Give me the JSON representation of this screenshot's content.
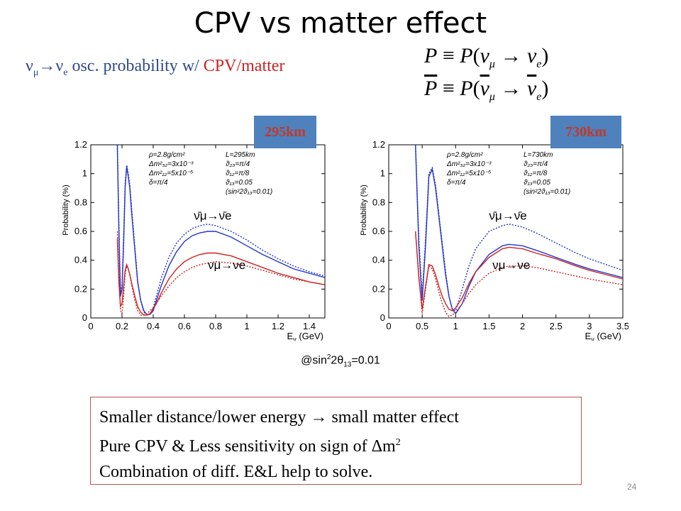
{
  "slide": {
    "title": "CPV vs matter effect",
    "subtitle": {
      "nu_mu": "ν",
      "mu_sub": "μ",
      "arrow": "→",
      "nu_e": "ν",
      "e_sub": "e",
      "text_blue": " osc. probability w/ ",
      "text_red": "CPV/matter"
    },
    "formula_p": {
      "lhs": "P",
      "eq": " ≡ ",
      "p": "P",
      "open": "(",
      "nu1": "ν",
      "sub1": "μ",
      "arrow": " → ",
      "nu2": "ν",
      "sub2": "e",
      "close": ")"
    },
    "formula_pbar": {
      "lhs": "P",
      "eq": " ≡ ",
      "p": "P",
      "open": "(",
      "nu1": "ν",
      "sub1": "μ",
      "arrow": " → ",
      "nu2": "ν",
      "sub2": "e",
      "close": ")"
    },
    "badges": [
      "295km",
      "730km"
    ],
    "note": {
      "prefix": "@sin",
      "sup": "2",
      "mid": "2θ",
      "sub": "13",
      "suffix": "=0.01"
    },
    "box_lines": [
      "Smaller distance/lower energy → small matter effect",
      "Pure CPV & Less sensitivity on sign of Δm",
      "Combination of diff. E&L help to solve."
    ],
    "box_line2_sup": "2",
    "page_number": "24"
  },
  "colors": {
    "title_text": "#000000",
    "subtitle_blue": "#2e4a8c",
    "subtitle_red": "#cc2222",
    "badge_fill": "#4f81bd",
    "badge_text": "#c0392b",
    "box_border": "#c0504d",
    "nu_curve": "#2233cc",
    "nubar_curve": "#cc2222"
  },
  "chart_data": [
    {
      "type": "line",
      "xlabel": "E",
      "xlabel_sub": "ν",
      "xlabel_unit": " (GeV)",
      "ylabel": "Probability (%)",
      "xlim": [
        0,
        1.5
      ],
      "ylim": [
        0,
        1.2
      ],
      "xticks": [
        "0",
        "0.2",
        "0.4",
        "0.6",
        "0.8",
        "1",
        "1.2",
        "1.4"
      ],
      "yticks": [
        "0",
        "0.2",
        "0.4",
        "0.6",
        "0.8",
        "1",
        "1.2"
      ],
      "params_left": [
        "ρ=2.8g/cm²",
        "Δm²₃₂=3x10⁻³",
        "Δm²₁₂=5x10⁻⁵",
        "δ=π/4"
      ],
      "params_right": [
        "L=295km",
        "ϑ₂₃=π/4",
        "ϑ₁₂=π/8",
        "ϑ₁₃=0.05",
        "(sin²2ϑ₁₃=0.01)"
      ],
      "annotations": [
        {
          "label": "ν̄μ→ν̄e",
          "x": 0.66,
          "y": 0.68
        },
        {
          "label": "νμ→νe",
          "x": 0.75,
          "y": 0.34
        }
      ],
      "series": [
        {
          "color": "#2233cc",
          "style": "solid",
          "x": [
            0.17,
            0.18,
            0.19,
            0.2,
            0.21,
            0.22,
            0.23,
            0.24,
            0.25,
            0.26,
            0.28,
            0.3,
            0.32,
            0.34,
            0.36,
            0.38,
            0.4,
            0.42,
            0.45,
            0.5,
            0.55,
            0.6,
            0.65,
            0.7,
            0.75,
            0.8,
            0.9,
            1.0,
            1.1,
            1.2,
            1.3,
            1.4,
            1.5
          ],
          "y": [
            1.2,
            0.6,
            0.15,
            0.2,
            0.5,
            0.9,
            1.05,
            0.98,
            0.9,
            0.75,
            0.5,
            0.25,
            0.12,
            0.05,
            0.02,
            0.025,
            0.05,
            0.12,
            0.22,
            0.36,
            0.46,
            0.53,
            0.57,
            0.59,
            0.6,
            0.6,
            0.56,
            0.5,
            0.44,
            0.39,
            0.34,
            0.31,
            0.28
          ]
        },
        {
          "color": "#2233cc",
          "style": "dashed",
          "x": [
            0.17,
            0.18,
            0.19,
            0.2,
            0.21,
            0.22,
            0.23,
            0.24,
            0.25,
            0.26,
            0.28,
            0.3,
            0.32,
            0.34,
            0.36,
            0.38,
            0.4,
            0.42,
            0.45,
            0.5,
            0.55,
            0.6,
            0.65,
            0.7,
            0.75,
            0.8,
            0.9,
            1.0,
            1.1,
            1.2,
            1.3,
            1.4,
            1.5
          ],
          "y": [
            1.2,
            0.65,
            0.18,
            0.22,
            0.55,
            0.93,
            1.06,
            1.0,
            0.92,
            0.78,
            0.52,
            0.26,
            0.12,
            0.04,
            0.02,
            0.03,
            0.07,
            0.15,
            0.27,
            0.42,
            0.52,
            0.58,
            0.62,
            0.64,
            0.65,
            0.64,
            0.6,
            0.54,
            0.47,
            0.41,
            0.36,
            0.32,
            0.29
          ]
        },
        {
          "color": "#cc2222",
          "style": "solid",
          "x": [
            0.17,
            0.18,
            0.19,
            0.2,
            0.21,
            0.22,
            0.23,
            0.24,
            0.25,
            0.26,
            0.28,
            0.3,
            0.32,
            0.34,
            0.36,
            0.38,
            0.4,
            0.42,
            0.45,
            0.5,
            0.55,
            0.6,
            0.65,
            0.7,
            0.75,
            0.8,
            0.9,
            1.0,
            1.1,
            1.2,
            1.3,
            1.4,
            1.5
          ],
          "y": [
            0.55,
            0.25,
            0.08,
            0.1,
            0.22,
            0.33,
            0.37,
            0.34,
            0.3,
            0.25,
            0.16,
            0.08,
            0.04,
            0.02,
            0.02,
            0.03,
            0.06,
            0.1,
            0.17,
            0.27,
            0.34,
            0.39,
            0.42,
            0.44,
            0.45,
            0.45,
            0.43,
            0.39,
            0.35,
            0.31,
            0.28,
            0.25,
            0.23
          ]
        },
        {
          "color": "#cc2222",
          "style": "dashed",
          "x": [
            0.17,
            0.18,
            0.19,
            0.2,
            0.21,
            0.22,
            0.23,
            0.24,
            0.25,
            0.26,
            0.28,
            0.3,
            0.32,
            0.34,
            0.36,
            0.38,
            0.4,
            0.42,
            0.45,
            0.5,
            0.55,
            0.6,
            0.65,
            0.7,
            0.75,
            0.8,
            0.9,
            1.0,
            1.1,
            1.2,
            1.3,
            1.4,
            1.5
          ],
          "y": [
            0.6,
            0.3,
            0.06,
            0.02,
            0.15,
            0.3,
            0.36,
            0.34,
            0.3,
            0.24,
            0.13,
            0.05,
            0.02,
            0.02,
            0.03,
            0.05,
            0.07,
            0.1,
            0.15,
            0.22,
            0.28,
            0.32,
            0.35,
            0.37,
            0.38,
            0.39,
            0.38,
            0.36,
            0.33,
            0.3,
            0.27,
            0.25,
            0.23
          ]
        }
      ]
    },
    {
      "type": "line",
      "xlabel": "E",
      "xlabel_sub": "ν",
      "xlabel_unit": " (GeV)",
      "ylabel": "Probability (%)",
      "xlim": [
        0,
        3.5
      ],
      "ylim": [
        0,
        1.2
      ],
      "xticks": [
        "0",
        "0.5",
        "1",
        "1.5",
        "2",
        "2.5",
        "3",
        "3.5"
      ],
      "yticks": [
        "0",
        "0.2",
        "0.4",
        "0.6",
        "0.8",
        "1",
        "1.2"
      ],
      "params_left": [
        "ρ=2.8g/cm²",
        "Δm²₃₂=3x10⁻³",
        "Δm²₁₂=5x10⁻⁵",
        "δ=π/4"
      ],
      "params_right": [
        "L=730km",
        "ϑ₂₃=π/4",
        "ϑ₁₂=π/8",
        "ϑ₁₃=0.05",
        "(sin²2ϑ₁₃=0.01)"
      ],
      "annotations": [
        {
          "label": "ν̄μ→ν̄e",
          "x": 1.5,
          "y": 0.68
        },
        {
          "label": "νμ→νe",
          "x": 1.55,
          "y": 0.34
        }
      ],
      "series": [
        {
          "color": "#2233cc",
          "style": "solid",
          "x": [
            0.4,
            0.45,
            0.5,
            0.55,
            0.6,
            0.65,
            0.7,
            0.75,
            0.8,
            0.85,
            0.9,
            0.95,
            1.0,
            1.1,
            1.2,
            1.3,
            1.5,
            1.7,
            1.8,
            2.0,
            2.2,
            2.5,
            2.8,
            3.0,
            3.25,
            3.5
          ],
          "y": [
            1.2,
            0.5,
            0.12,
            0.5,
            0.98,
            1.03,
            0.9,
            0.7,
            0.5,
            0.3,
            0.15,
            0.06,
            0.03,
            0.1,
            0.22,
            0.32,
            0.44,
            0.5,
            0.51,
            0.5,
            0.47,
            0.42,
            0.37,
            0.34,
            0.31,
            0.28
          ]
        },
        {
          "color": "#2233cc",
          "style": "dashed",
          "x": [
            0.4,
            0.45,
            0.5,
            0.55,
            0.6,
            0.65,
            0.7,
            0.75,
            0.8,
            0.85,
            0.9,
            0.95,
            1.0,
            1.1,
            1.2,
            1.3,
            1.5,
            1.7,
            1.8,
            2.0,
            2.2,
            2.5,
            2.8,
            3.0,
            3.25,
            3.5
          ],
          "y": [
            1.2,
            0.55,
            0.15,
            0.55,
            1.0,
            1.04,
            0.92,
            0.72,
            0.52,
            0.32,
            0.15,
            0.06,
            0.05,
            0.2,
            0.36,
            0.48,
            0.6,
            0.64,
            0.65,
            0.63,
            0.59,
            0.52,
            0.45,
            0.41,
            0.37,
            0.33
          ]
        },
        {
          "color": "#cc2222",
          "style": "solid",
          "x": [
            0.4,
            0.45,
            0.5,
            0.55,
            0.6,
            0.65,
            0.7,
            0.75,
            0.8,
            0.85,
            0.9,
            0.95,
            1.0,
            1.1,
            1.2,
            1.3,
            1.5,
            1.7,
            1.8,
            2.0,
            2.2,
            2.5,
            2.8,
            3.0,
            3.25,
            3.5
          ],
          "y": [
            0.6,
            0.28,
            0.06,
            0.22,
            0.37,
            0.36,
            0.3,
            0.22,
            0.15,
            0.1,
            0.06,
            0.05,
            0.07,
            0.14,
            0.24,
            0.32,
            0.42,
            0.48,
            0.49,
            0.48,
            0.45,
            0.41,
            0.36,
            0.33,
            0.3,
            0.27
          ]
        },
        {
          "color": "#cc2222",
          "style": "dashed",
          "x": [
            0.4,
            0.45,
            0.5,
            0.55,
            0.6,
            0.65,
            0.7,
            0.75,
            0.8,
            0.85,
            0.9,
            0.95,
            1.0,
            1.1,
            1.2,
            1.3,
            1.5,
            1.7,
            1.8,
            2.0,
            2.2,
            2.5,
            2.8,
            3.0,
            3.25,
            3.5
          ],
          "y": [
            0.6,
            0.3,
            0.03,
            0.2,
            0.36,
            0.34,
            0.27,
            0.18,
            0.1,
            0.04,
            0.01,
            0.02,
            0.04,
            0.1,
            0.17,
            0.23,
            0.31,
            0.35,
            0.36,
            0.36,
            0.35,
            0.32,
            0.29,
            0.27,
            0.25,
            0.23
          ]
        }
      ]
    }
  ]
}
